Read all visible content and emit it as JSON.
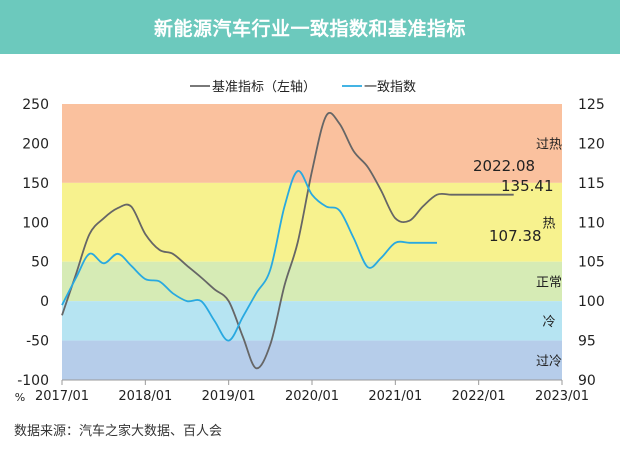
{
  "chart_data": {
    "type": "line",
    "title": "新能源汽车行业一致指数和基准指标",
    "source": "数据来源：汽车之家大数据、百人会",
    "left_axis": {
      "unit": "%",
      "range": [
        -100,
        250
      ],
      "ticks": [
        "250",
        "200",
        "150",
        "100",
        "50",
        "0",
        "-50",
        "-100"
      ]
    },
    "right_axis": {
      "range": [
        90,
        125
      ],
      "ticks": [
        "125",
        "120",
        "115",
        "110",
        "105",
        "100",
        "95",
        "90"
      ]
    },
    "x_axis": {
      "range": [
        2017.0,
        2023.0
      ],
      "ticks": [
        "2017/01",
        "2018/01",
        "2019/01",
        "2020/01",
        "2021/01",
        "2022/01",
        "2023/01"
      ]
    },
    "bands": [
      {
        "label": "过热",
        "from": 150,
        "to": 250,
        "color": "#f9b68d"
      },
      {
        "label": "热",
        "from": 50,
        "to": 150,
        "color": "#f6f07a"
      },
      {
        "label": "正常",
        "from": 0,
        "to": 50,
        "color": "#cfe7a8"
      },
      {
        "label": "冷",
        "from": -50,
        "to": 0,
        "color": "#a9dff0"
      },
      {
        "label": "过冷",
        "from": -100,
        "to": -50,
        "color": "#a9c4e6"
      }
    ],
    "series": [
      {
        "name": "基准指标（左轴）",
        "axis": "left",
        "color": "#666666",
        "x": [
          2017.0,
          2017.17,
          2017.33,
          2017.5,
          2017.67,
          2017.83,
          2018.0,
          2018.17,
          2018.33,
          2018.5,
          2018.67,
          2018.83,
          2019.0,
          2019.17,
          2019.33,
          2019.5,
          2019.67,
          2019.83,
          2020.0,
          2020.17,
          2020.33,
          2020.5,
          2020.67,
          2020.83,
          2021.0,
          2021.17,
          2021.33,
          2021.5,
          2021.67,
          2021.83,
          2022.0,
          2022.17,
          2022.33,
          2022.42
        ],
        "values": [
          -18,
          35,
          85,
          105,
          118,
          120,
          85,
          65,
          60,
          45,
          30,
          15,
          0,
          -45,
          -85,
          -55,
          20,
          75,
          165,
          235,
          225,
          190,
          170,
          140,
          105,
          102,
          120,
          135,
          135,
          135,
          135,
          135,
          135,
          135
        ]
      },
      {
        "name": "一致指数",
        "axis": "right",
        "color": "#29a9e0",
        "x": [
          2017.0,
          2017.17,
          2017.33,
          2017.5,
          2017.67,
          2017.83,
          2018.0,
          2018.17,
          2018.33,
          2018.5,
          2018.67,
          2018.83,
          2019.0,
          2019.17,
          2019.33,
          2019.5,
          2019.67,
          2019.83,
          2020.0,
          2020.17,
          2020.33,
          2020.5,
          2020.67,
          2020.83,
          2021.0,
          2021.17,
          2021.33,
          2021.5
        ],
        "values": [
          99.5,
          103,
          106,
          104.8,
          106,
          104.5,
          102.8,
          102.5,
          101,
          100,
          100,
          97.5,
          95,
          98,
          101,
          104,
          112,
          116.5,
          113.5,
          112,
          111.5,
          108,
          104.3,
          105.5,
          107.4,
          107.4,
          107.4,
          107.4
        ]
      }
    ],
    "annotations": [
      {
        "text": "2022.08",
        "series": "基准指标（左轴）"
      },
      {
        "text": "135.41",
        "series": "基准指标（左轴）"
      },
      {
        "text": "107.38",
        "series": "一致指数"
      }
    ]
  }
}
